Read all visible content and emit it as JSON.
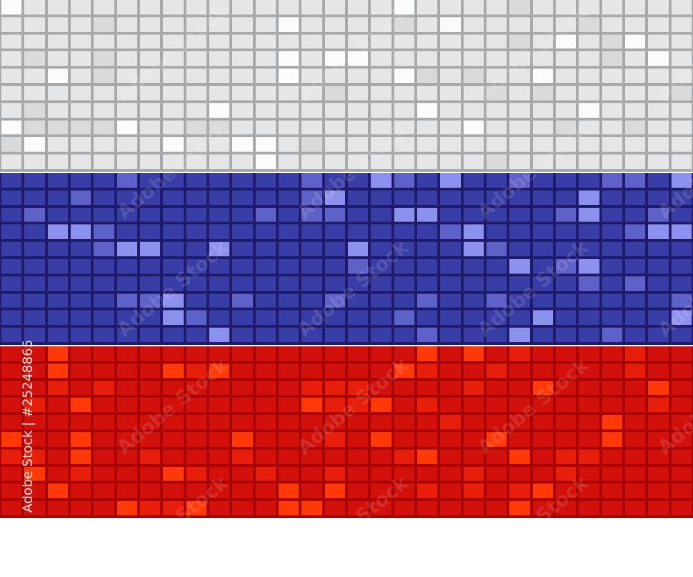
{
  "image": {
    "subject": "flag-of-russia-mosaic",
    "stripes": [
      {
        "name": "white",
        "tile": "#e5e6e8",
        "gap": "#a9a9a9",
        "highlight": "#fbfbfb",
        "shade": "#d9dadc"
      },
      {
        "name": "blue",
        "tile": "#3b3da6",
        "gap": "#1d1b6c",
        "highlight": "#8e90ee",
        "shade": "#5f61c8"
      },
      {
        "name": "red",
        "tile": "#d2100c",
        "gap": "#a80400",
        "highlight": "#ff3a08",
        "shade": "#e61e0a"
      }
    ]
  },
  "watermark": {
    "id_label": "Adobe Stock | #25248865",
    "brand": "Adobe Stock"
  }
}
